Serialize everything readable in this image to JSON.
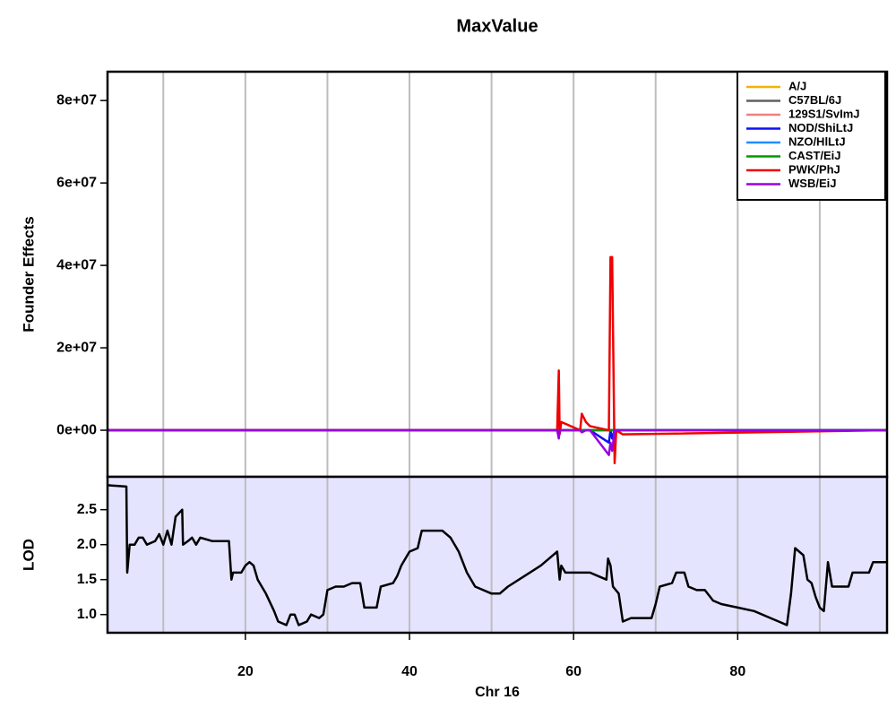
{
  "chart_data": [
    {
      "type": "line",
      "title": "MaxValue",
      "ylabel": "Founder Effects",
      "xlim": [
        3.2,
        98.2
      ],
      "xgrid": [
        10,
        20,
        30,
        40,
        50,
        60,
        70,
        80,
        90
      ],
      "ylim": [
        -11300000,
        87000000
      ],
      "yticks": [
        {
          "value": 0,
          "label": "0e+00"
        },
        {
          "value": 20000000,
          "label": "2e+07"
        },
        {
          "value": 40000000,
          "label": "4e+07"
        },
        {
          "value": 60000000,
          "label": "6e+07"
        },
        {
          "value": 80000000,
          "label": "8e+07"
        }
      ],
      "legend": "top-right",
      "x": [
        3.2,
        58.0,
        58.2,
        58.3,
        58.5,
        60.8,
        61.0,
        61.5,
        62.0,
        64.3,
        64.5,
        64.7,
        65.0,
        65.2,
        66.0,
        98.2
      ],
      "series": [
        {
          "name": "A/J",
          "color": "#f0b400",
          "values": [
            0,
            0,
            0,
            0,
            0,
            0,
            0,
            0,
            0,
            0,
            0,
            0,
            0,
            0,
            0,
            0
          ]
        },
        {
          "name": "C57BL/6J",
          "color": "#606060",
          "values": [
            0,
            0,
            0,
            0,
            0,
            0,
            0,
            0,
            0,
            0,
            0,
            0,
            0,
            0,
            0,
            0
          ]
        },
        {
          "name": "129S1/SvImJ",
          "color": "#f08080",
          "values": [
            0,
            0,
            0,
            0,
            0,
            0,
            0,
            0,
            0,
            0,
            0,
            0,
            0,
            0,
            0,
            0
          ]
        },
        {
          "name": "NOD/ShiLtJ",
          "color": "#1010f0",
          "values": [
            0,
            0,
            -1000000,
            0,
            0,
            0,
            0,
            0,
            0,
            -3000000,
            0,
            -2000000,
            0,
            0,
            0,
            0
          ]
        },
        {
          "name": "NZO/HlLtJ",
          "color": "#1e90ff",
          "values": [
            0,
            0,
            0,
            0,
            0,
            0,
            0,
            0,
            0,
            0,
            0,
            0,
            0,
            0,
            0,
            0
          ]
        },
        {
          "name": "CAST/EiJ",
          "color": "#009900",
          "values": [
            0,
            0,
            0,
            0,
            0,
            0,
            0,
            0,
            0,
            0,
            0,
            0,
            0,
            0,
            0,
            0
          ]
        },
        {
          "name": "PWK/PhJ",
          "color": "#f00000",
          "values": [
            0,
            0,
            14500000,
            -1000000,
            2000000,
            0,
            4000000,
            2000000,
            1000000,
            0,
            42000000,
            42000000,
            -8000000,
            0,
            -1000000,
            0
          ]
        },
        {
          "name": "WSB/EiJ",
          "color": "#9900e0",
          "values": [
            0,
            0,
            -2000000,
            0,
            0,
            0,
            -500000,
            0,
            0,
            -6000000,
            -3000000,
            -5000000,
            0,
            0,
            0,
            0
          ]
        }
      ]
    },
    {
      "type": "line",
      "ylabel": "LOD",
      "xlabel": "Chr 16",
      "xlim": [
        3.2,
        98.2
      ],
      "xgrid": [
        10,
        20,
        30,
        40,
        50,
        60,
        70,
        80,
        90
      ],
      "xticks": [
        20,
        40,
        60,
        80
      ],
      "ylim": [
        0.74,
        2.97
      ],
      "yticks": [
        {
          "value": 1,
          "label": "1.0"
        },
        1.5,
        {
          "value": 2,
          "label": "2.0"
        },
        2.5
      ],
      "background": "#e4e4ff",
      "x": [
        3.2,
        5.5,
        5.6,
        5.9,
        6.5,
        7,
        7.5,
        8,
        9,
        9.5,
        10,
        10.5,
        11,
        11.5,
        12.3,
        12.4,
        13,
        13.5,
        14,
        14.5,
        16,
        18,
        18.3,
        18.5,
        19.5,
        20,
        20.5,
        21,
        21.5,
        22,
        22.5,
        23.5,
        24,
        25,
        25.5,
        26,
        26.5,
        27.5,
        28,
        29,
        29.5,
        30,
        31,
        32,
        33,
        34,
        34.5,
        36,
        36.5,
        38,
        38.5,
        39,
        40,
        41,
        41.5,
        44,
        45,
        46,
        47,
        48,
        50,
        51,
        52,
        54,
        56,
        57,
        58,
        58.3,
        58.5,
        59,
        61,
        62,
        63,
        64,
        64.2,
        64.5,
        64.8,
        65.5,
        66,
        67,
        69.5,
        70,
        70.5,
        72,
        72.5,
        73.5,
        74,
        75,
        76,
        77,
        78,
        80,
        82,
        84,
        85,
        86,
        86.5,
        87,
        88,
        88.5,
        89,
        89.5,
        90,
        90.5,
        91,
        91.5,
        92,
        93.5,
        94,
        96,
        96.5,
        98.2
      ],
      "series": [
        {
          "name": "LOD",
          "color": "#000000",
          "values": [
            2.85,
            2.83,
            1.6,
            2.0,
            2.0,
            2.1,
            2.1,
            2.0,
            2.05,
            2.15,
            2.0,
            2.2,
            2.0,
            2.4,
            2.5,
            2.0,
            2.05,
            2.1,
            2.0,
            2.1,
            2.05,
            2.05,
            1.5,
            1.6,
            1.6,
            1.7,
            1.75,
            1.7,
            1.5,
            1.4,
            1.3,
            1.05,
            0.9,
            0.85,
            1.0,
            1.0,
            0.85,
            0.9,
            1.0,
            0.95,
            1.0,
            1.35,
            1.4,
            1.4,
            1.45,
            1.45,
            1.1,
            1.1,
            1.4,
            1.45,
            1.55,
            1.7,
            1.9,
            1.95,
            2.2,
            2.2,
            2.1,
            1.9,
            1.6,
            1.4,
            1.3,
            1.3,
            1.4,
            1.55,
            1.7,
            1.8,
            1.9,
            1.5,
            1.7,
            1.6,
            1.6,
            1.6,
            1.55,
            1.5,
            1.8,
            1.7,
            1.4,
            1.3,
            0.9,
            0.95,
            0.95,
            1.15,
            1.4,
            1.45,
            1.6,
            1.6,
            1.4,
            1.35,
            1.35,
            1.2,
            1.15,
            1.1,
            1.05,
            0.95,
            0.9,
            0.85,
            1.3,
            1.95,
            1.85,
            1.5,
            1.45,
            1.25,
            1.1,
            1.05,
            1.75,
            1.4,
            1.4,
            1.4,
            1.6,
            1.6,
            1.75,
            1.75
          ]
        }
      ]
    }
  ]
}
